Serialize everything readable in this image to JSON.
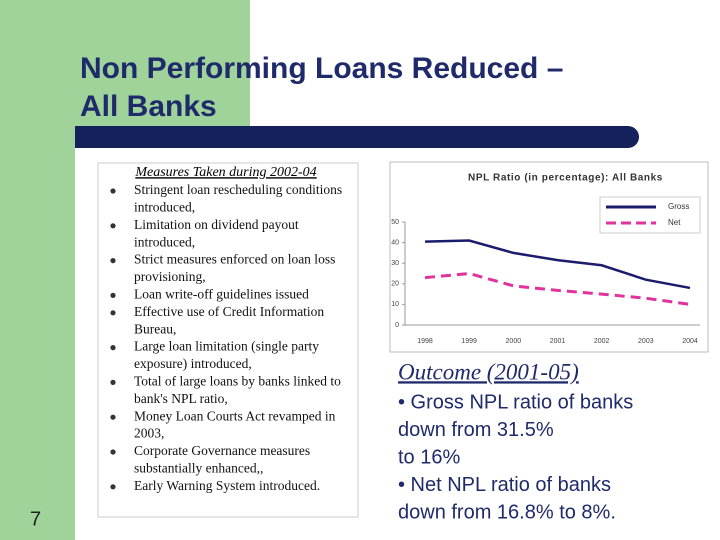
{
  "slide": {
    "title_lines": [
      "Non Performing Loans Reduced –",
      "All Banks"
    ],
    "measures_heading": "Measures Taken during 2002-04",
    "bullets": [
      [
        "Stringent loan rescheduling conditions",
        "introduced,"
      ],
      [
        "Limitation on dividend payout",
        "introduced,"
      ],
      [
        "Strict measures enforced on loan loss",
        "provisioning,"
      ],
      [
        "Loan write-off guidelines issued"
      ],
      [
        "Effective use of Credit Information",
        "Bureau,"
      ],
      [
        "Large loan limitation (single party",
        "exposure) introduced,"
      ],
      [
        "Total of large loans by banks linked to",
        "bank's NPL ratio,"
      ],
      [
        "Money Loan Courts Act revamped in",
        "2003,"
      ],
      [
        "Corporate Governance measures",
        "substantially enhanced,,"
      ],
      [
        "Early Warning System introduced."
      ]
    ],
    "page_number": "7",
    "outcome_heading": "Outcome (2001-05)",
    "outcome_lines": [
      "• Gross NPL ratio of banks",
      "down from 31.5%",
      "to 16%",
      "• Net NPL ratio of banks",
      "down from 16.8% to 8%."
    ]
  },
  "chart_data": {
    "type": "line",
    "title": "NPL Ratio (in percentage): All Banks",
    "categories": [
      "1998",
      "1999",
      "2000",
      "2001",
      "2002",
      "2003",
      "2004"
    ],
    "series": [
      {
        "name": "Gross",
        "color": "#1c1c6e",
        "values": [
          40.5,
          41,
          35,
          31.5,
          29,
          22,
          18
        ]
      },
      {
        "name": "Net",
        "color": "#e0339c",
        "values": [
          23,
          25,
          19,
          16.8,
          15,
          13,
          10
        ]
      }
    ],
    "ylim": [
      0,
      50
    ],
    "yticks": [
      0,
      10,
      20,
      30,
      40,
      50
    ],
    "legend": "upper-right"
  }
}
